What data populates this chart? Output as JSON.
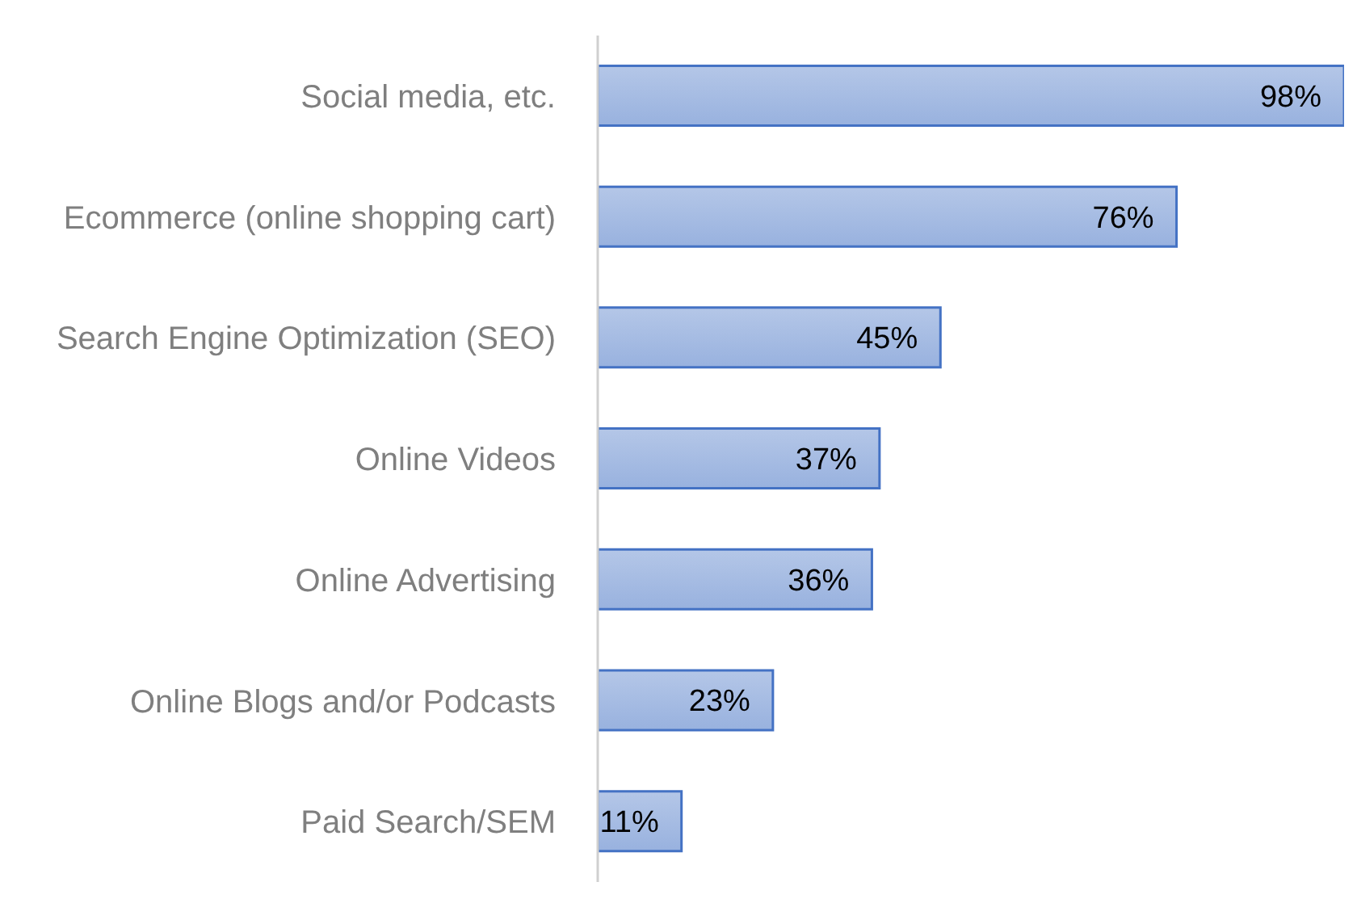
{
  "chart_data": {
    "type": "bar",
    "orientation": "horizontal",
    "categories": [
      "Social media, etc.",
      "Ecommerce (online shopping cart)",
      "Search Engine Optimization (SEO)",
      "Online Videos",
      "Online Advertising",
      "Online Blogs and/or Podcasts",
      "Paid Search/SEM"
    ],
    "values": [
      98,
      76,
      45,
      37,
      36,
      23,
      11
    ],
    "value_labels": [
      "98%",
      "76%",
      "45%",
      "37%",
      "36%",
      "23%",
      "11%"
    ],
    "color": "#4472c4"
  }
}
